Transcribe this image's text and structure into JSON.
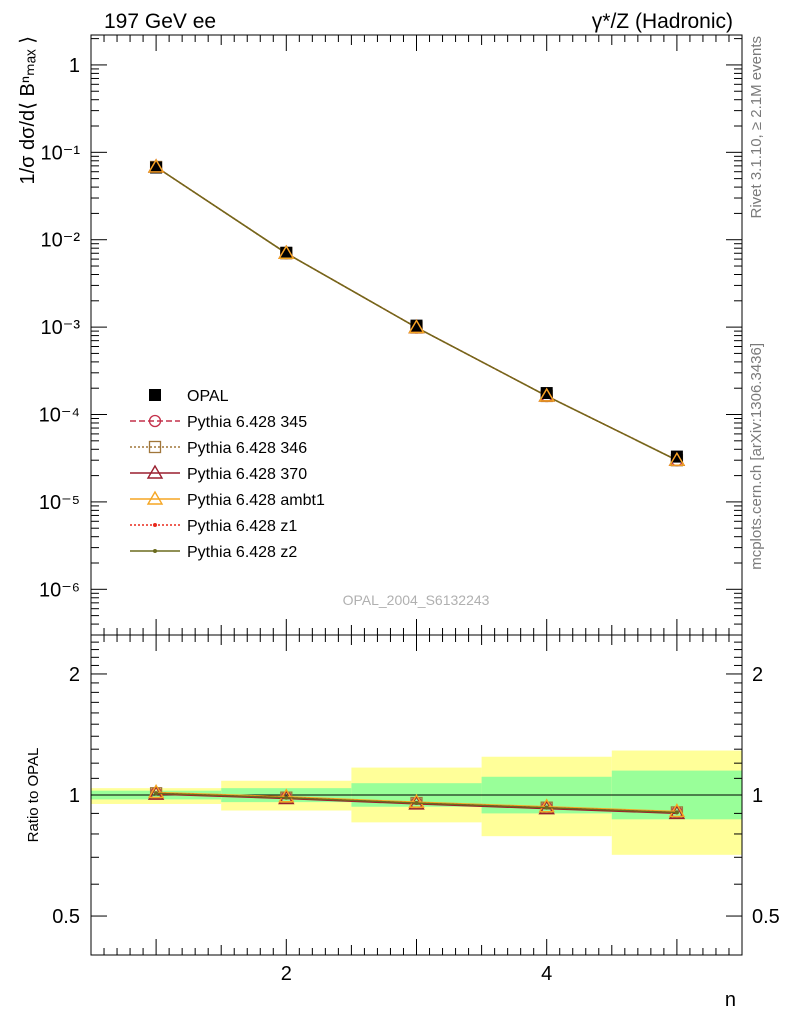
{
  "header": {
    "left": "197 GeV ee",
    "right": "γ*/Z (Hadronic)"
  },
  "side": {
    "rivet": "Rivet 3.1.10, ≥ 2.1M events",
    "mcplots": "mcplots.cern.ch [arXiv:1306.3436]"
  },
  "watermark": "OPAL_2004_S6132243",
  "main_ylabel": "1/σ dσ/d⟨ Bⁿₘₐₓ ⟩",
  "ratio_ylabel": "Ratio to OPAL",
  "xlabel": "n",
  "main_yticks": [
    "1",
    "10⁻¹",
    "10⁻²",
    "10⁻³",
    "10⁻⁴",
    "10⁻⁵",
    "10⁻⁶"
  ],
  "ratio_yticks": [
    "2",
    "1",
    "0.5"
  ],
  "xticks": [
    "2",
    "4"
  ],
  "colors": {
    "data": "#000000",
    "p345": "#c4304a",
    "p346": "#a0763a",
    "p370": "#9a1f2f",
    "ambt1": "#f5a623",
    "z1": "#e8281c",
    "z2": "#6b6b1f",
    "band_inner": "#99ff99",
    "band_outer": "#ffff99"
  },
  "chart_data": [
    {
      "type": "scatter",
      "title": "",
      "xlabel": "n",
      "ylabel": "1/σ dσ/d⟨ Bⁿₘₐₓ ⟩",
      "yscale": "log",
      "xlim": [
        0.5,
        5.5
      ],
      "ylim": [
        3e-07,
        2.2
      ],
      "legend_position": "left",
      "series": [
        {
          "name": "OPAL",
          "key": "data",
          "marker": "square-filled",
          "x": [
            1,
            2,
            3,
            4,
            5
          ],
          "y": [
            0.067,
            0.0071,
            0.00104,
            0.000176,
            3.3e-05
          ]
        },
        {
          "name": "Pythia 6.428 345",
          "key": "p345",
          "marker": "circle-open",
          "line": "dashed",
          "x": [
            1,
            2,
            3,
            4,
            5
          ],
          "y": [
            0.068,
            0.007,
            0.00099,
            0.000163,
            3e-05
          ]
        },
        {
          "name": "Pythia 6.428 346",
          "key": "p346",
          "marker": "square-open",
          "line": "dotted",
          "x": [
            1,
            2,
            3,
            4,
            5
          ],
          "y": [
            0.068,
            0.007,
            0.00099,
            0.000163,
            3e-05
          ]
        },
        {
          "name": "Pythia 6.428 370",
          "key": "p370",
          "marker": "triangle-open",
          "line": "solid",
          "x": [
            1,
            2,
            3,
            4,
            5
          ],
          "y": [
            0.068,
            0.007,
            0.00099,
            0.000163,
            3e-05
          ]
        },
        {
          "name": "Pythia 6.428 ambt1",
          "key": "ambt1",
          "marker": "triangle-open",
          "line": "solid",
          "x": [
            1,
            2,
            3,
            4,
            5
          ],
          "y": [
            0.068,
            0.007,
            0.00099,
            0.000163,
            3e-05
          ]
        },
        {
          "name": "Pythia 6.428 z1",
          "key": "z1",
          "marker": "dot",
          "line": "dotted",
          "x": [
            1,
            2,
            3,
            4,
            5
          ],
          "y": [
            0.068,
            0.007,
            0.00099,
            0.000163,
            3e-05
          ]
        },
        {
          "name": "Pythia 6.428 z2",
          "key": "z2",
          "marker": "dot",
          "line": "solid",
          "x": [
            1,
            2,
            3,
            4,
            5
          ],
          "y": [
            0.068,
            0.007,
            0.00099,
            0.000163,
            3e-05
          ]
        }
      ]
    },
    {
      "type": "line",
      "title": "",
      "xlabel": "n",
      "ylabel": "Ratio to OPAL",
      "yscale": "log",
      "xlim": [
        0.5,
        5.5
      ],
      "ylim": [
        0.4,
        2.5
      ],
      "bands": {
        "x_edges": [
          0.5,
          1.5,
          2.5,
          3.5,
          4.5,
          5.5
        ],
        "inner_low": [
          0.975,
          0.96,
          0.935,
          0.9,
          0.87
        ],
        "inner_high": [
          1.025,
          1.04,
          1.07,
          1.11,
          1.15
        ],
        "outer_low": [
          0.95,
          0.915,
          0.855,
          0.79,
          0.71
        ],
        "outer_high": [
          1.04,
          1.085,
          1.17,
          1.245,
          1.29
        ]
      },
      "series": [
        {
          "name": "Pythia 6.428 345",
          "key": "p345",
          "x": [
            1,
            2,
            3,
            4,
            5
          ],
          "y": [
            1.01,
            0.985,
            0.955,
            0.93,
            0.905
          ]
        },
        {
          "name": "Pythia 6.428 346",
          "key": "p346",
          "x": [
            1,
            2,
            3,
            4,
            5
          ],
          "y": [
            1.01,
            0.985,
            0.955,
            0.93,
            0.905
          ]
        },
        {
          "name": "Pythia 6.428 370",
          "key": "p370",
          "x": [
            1,
            2,
            3,
            4,
            5
          ],
          "y": [
            1.005,
            0.98,
            0.95,
            0.925,
            0.9
          ]
        },
        {
          "name": "Pythia 6.428 ambt1",
          "key": "ambt1",
          "x": [
            1,
            2,
            3,
            4,
            5
          ],
          "y": [
            1.015,
            0.99,
            0.96,
            0.935,
            0.91
          ]
        },
        {
          "name": "Pythia 6.428 z1",
          "key": "z1",
          "x": [
            1,
            2,
            3,
            4,
            5
          ],
          "y": [
            1.01,
            0.985,
            0.955,
            0.93,
            0.905
          ]
        },
        {
          "name": "Pythia 6.428 z2",
          "key": "z2",
          "x": [
            1,
            2,
            3,
            4,
            5
          ],
          "y": [
            1.01,
            0.985,
            0.955,
            0.93,
            0.905
          ]
        }
      ]
    }
  ]
}
